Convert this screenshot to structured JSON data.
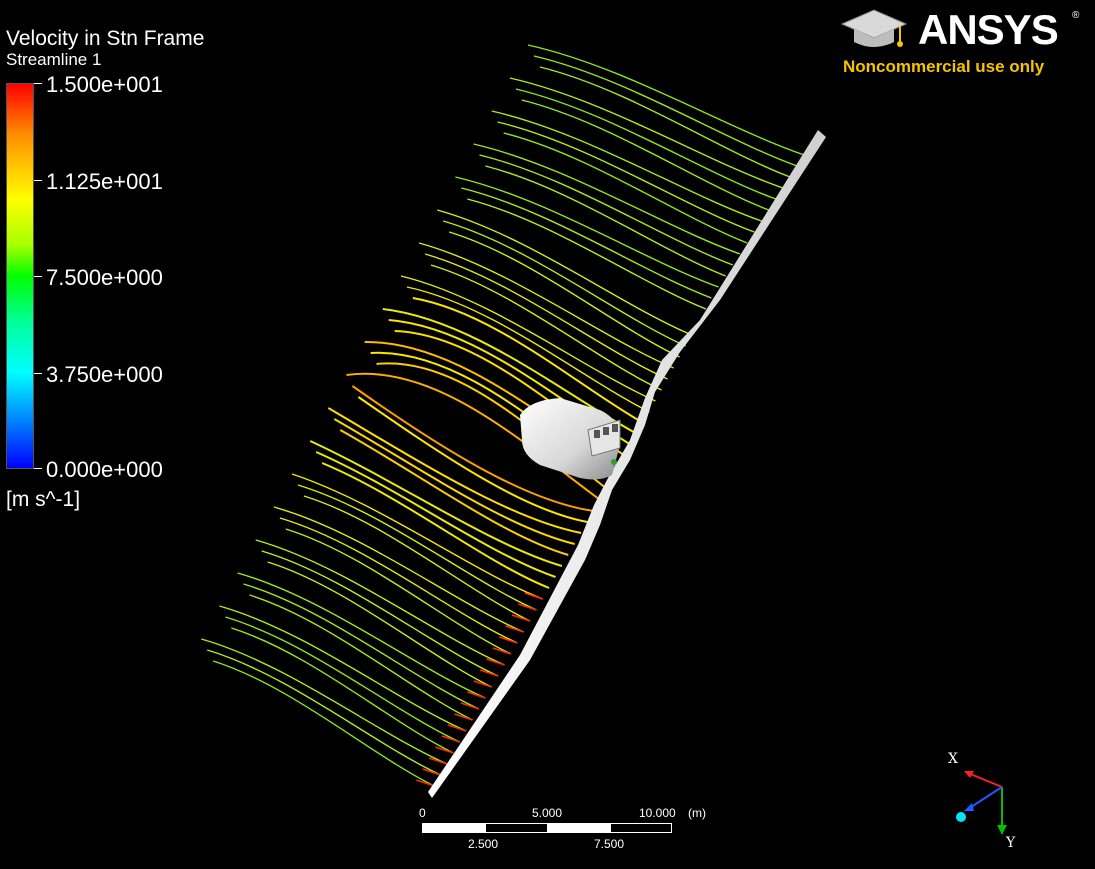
{
  "legend": {
    "title": "Velocity in Stn Frame",
    "subtitle": "Streamline 1",
    "ticks": [
      "1.500e+001",
      "1.125e+001",
      "7.500e+000",
      "3.750e+000",
      "0.000e+000"
    ],
    "unit": "[m s^-1]",
    "colors": [
      "#ff0000",
      "#ffff00",
      "#00ff00",
      "#00ffff",
      "#0000ff"
    ]
  },
  "logo": {
    "brand": "ANSYS",
    "registered": "®",
    "note": "Noncommercial use only",
    "brand_color": "#ffffff",
    "note_color": "#f5c400",
    "icon": "graduation-cap-icon"
  },
  "scale_bar": {
    "top_labels": [
      "0",
      "5.000",
      "10.000",
      "(m)"
    ],
    "bottom_labels": [
      "2.500",
      "7.500"
    ]
  },
  "axes": {
    "x_label": "X",
    "y_label": "Y",
    "x_color": "#ff2020",
    "y_color": "#00c000",
    "z_color": "#1e5bff"
  }
}
